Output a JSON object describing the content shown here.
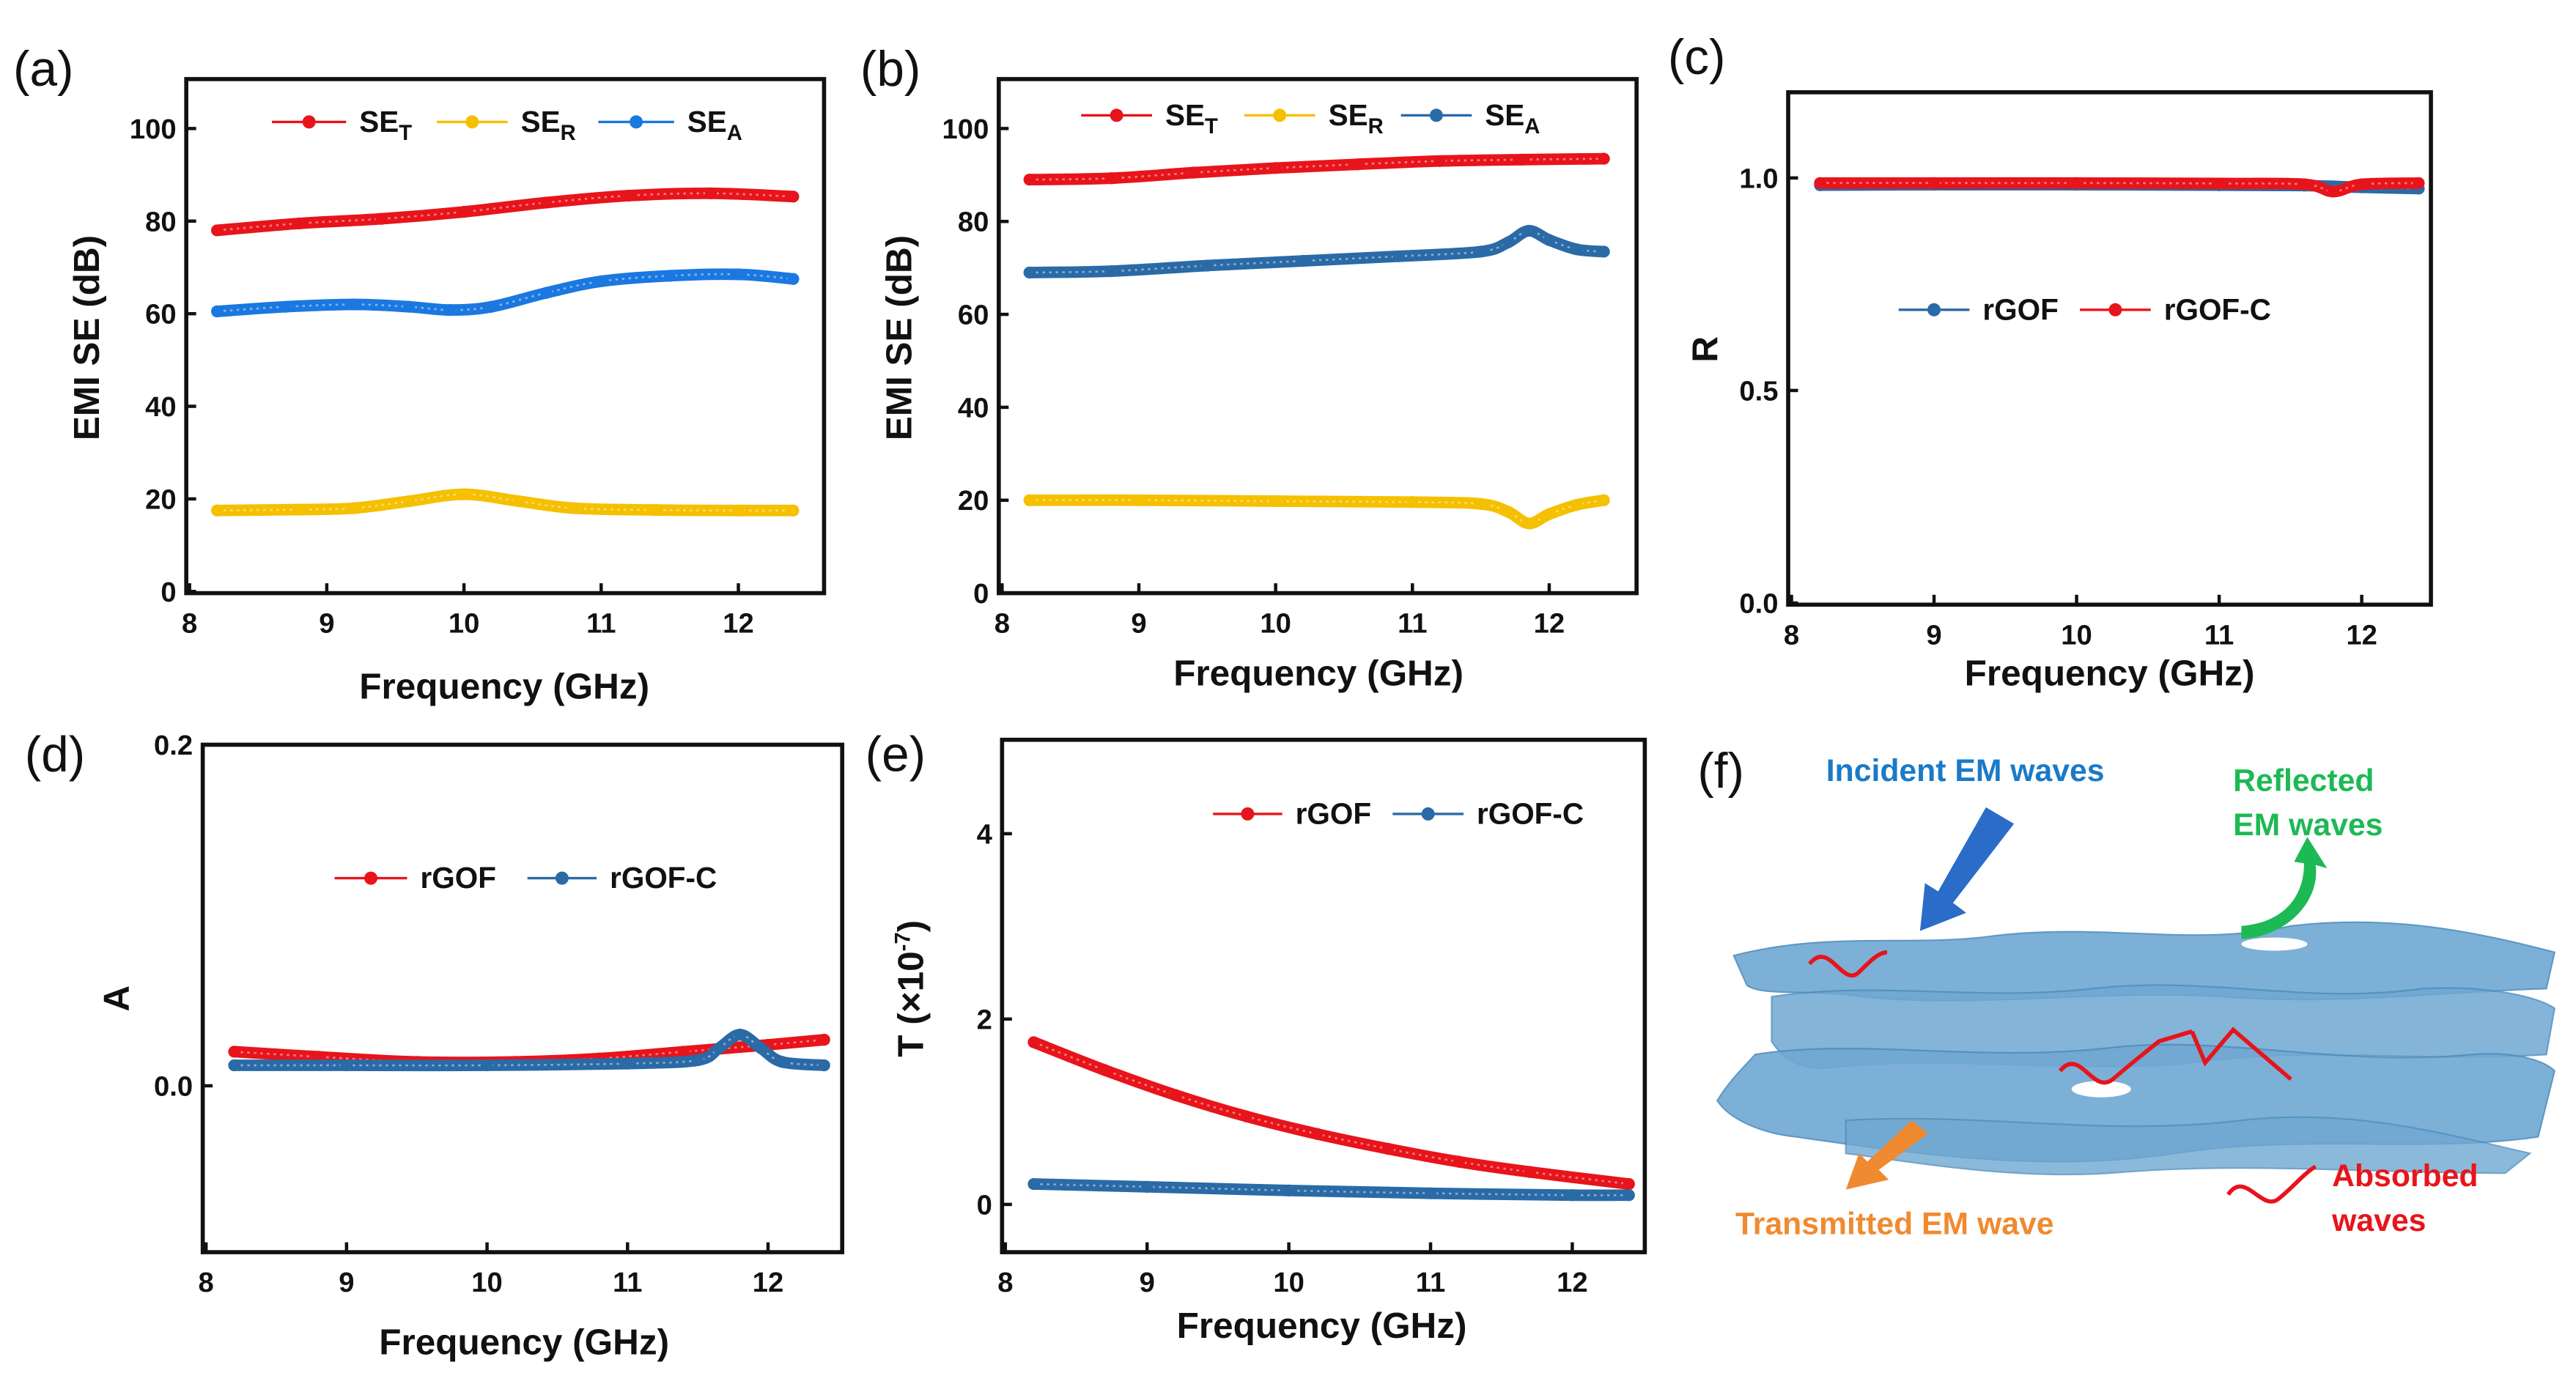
{
  "panel_labels": [
    "(a)",
    "(b)",
    "(c)",
    "(d)",
    "(e)",
    "(f)"
  ],
  "colors": {
    "red": "#e8141b",
    "yellow": "#f5c000",
    "blue_a": "#1a78e0",
    "blue": "#2a6aa6",
    "incident": "#1a7ac8",
    "reflected": "#1db954",
    "transmitted": "#f08a30",
    "absorbed": "#e8141b",
    "fiber": "#6fa8d2"
  },
  "chart_data": [
    {
      "id": "a",
      "type": "line",
      "xlabel": "Frequency (GHz)",
      "ylabel": "EMI SE (dB)",
      "xlim": [
        8,
        12.6
      ],
      "ylim": [
        0,
        110
      ],
      "xticks": [
        "8",
        "9",
        "10",
        "11",
        "12"
      ],
      "yticks": [
        "0",
        "20",
        "40",
        "60",
        "80",
        "100"
      ],
      "legend_position": "top",
      "series": [
        {
          "name": "SE",
          "sub": "T",
          "color": "#e8141b",
          "x": [
            8.2,
            8.8,
            9.4,
            10,
            10.6,
            11.2,
            11.8,
            12.4
          ],
          "y": [
            78,
            79.5,
            80.5,
            82,
            84,
            85.5,
            86,
            85.3
          ]
        },
        {
          "name": "SE",
          "sub": "R",
          "color": "#f5c000",
          "x": [
            8.2,
            8.8,
            9.2,
            9.6,
            10,
            10.4,
            10.8,
            11.4,
            12,
            12.4
          ],
          "y": [
            17.5,
            17.7,
            18,
            19.5,
            21,
            19.5,
            18,
            17.6,
            17.5,
            17.5
          ]
        },
        {
          "name": "SE",
          "sub": "A",
          "color": "#1a78e0",
          "x": [
            8.2,
            8.7,
            9.2,
            9.6,
            9.9,
            10.2,
            10.6,
            11,
            11.5,
            12,
            12.4
          ],
          "y": [
            60.5,
            61.5,
            62,
            61.5,
            60.8,
            61.5,
            64.5,
            67,
            68.2,
            68.5,
            67.5
          ]
        }
      ]
    },
    {
      "id": "b",
      "type": "line",
      "xlabel": "Frequency (GHz)",
      "ylabel": "EMI SE (dB)",
      "xlim": [
        8,
        12.6
      ],
      "ylim": [
        0,
        110
      ],
      "xticks": [
        "8",
        "9",
        "10",
        "11",
        "12"
      ],
      "yticks": [
        "0",
        "20",
        "40",
        "60",
        "80",
        "100"
      ],
      "legend_position": "top",
      "series": [
        {
          "name": "SE",
          "sub": "T",
          "color": "#e8141b",
          "x": [
            8.2,
            8.8,
            9.4,
            10,
            10.6,
            11.2,
            11.8,
            12.4
          ],
          "y": [
            89,
            89.3,
            90.5,
            91.5,
            92.3,
            93,
            93.3,
            93.5
          ]
        },
        {
          "name": "SE",
          "sub": "R",
          "color": "#f5c000",
          "x": [
            8.2,
            9,
            10,
            11,
            11.5,
            11.7,
            11.85,
            12,
            12.2,
            12.4
          ],
          "y": [
            20,
            20,
            19.8,
            19.6,
            19.2,
            17.5,
            15,
            17,
            19,
            20
          ]
        },
        {
          "name": "SE",
          "sub": "A",
          "color": "#2a6aa6",
          "x": [
            8.2,
            8.8,
            9.5,
            10.2,
            10.9,
            11.5,
            11.7,
            11.85,
            12,
            12.2,
            12.4
          ],
          "y": [
            69,
            69.3,
            70.5,
            71.5,
            72.5,
            73.5,
            75.5,
            78,
            76,
            74,
            73.5
          ]
        }
      ]
    },
    {
      "id": "c",
      "type": "line",
      "xlabel": "Frequency (GHz)",
      "ylabel": "R",
      "xlim": [
        8,
        12.6
      ],
      "ylim": [
        0,
        1.19
      ],
      "xticks": [
        "8",
        "9",
        "10",
        "11",
        "12"
      ],
      "yticks": [
        "0.0",
        "0.5",
        "1.0"
      ],
      "legend_position": "center",
      "series": [
        {
          "name": "rGOF",
          "sub": "",
          "color": "#2a6aa6",
          "x": [
            8.2,
            9,
            10,
            11,
            11.6,
            12,
            12.4
          ],
          "y": [
            0.983,
            0.984,
            0.984,
            0.983,
            0.982,
            0.978,
            0.975
          ]
        },
        {
          "name": "rGOF-C",
          "sub": "",
          "color": "#e8141b",
          "x": [
            8.2,
            9,
            10,
            11,
            11.6,
            11.8,
            12,
            12.4
          ],
          "y": [
            0.988,
            0.988,
            0.988,
            0.987,
            0.985,
            0.968,
            0.985,
            0.988
          ]
        }
      ]
    },
    {
      "id": "d",
      "type": "line",
      "xlabel": "Frequency (GHz)",
      "ylabel": "A",
      "xlim": [
        8,
        12.5
      ],
      "ylim": [
        -0.1,
        0.2
      ],
      "xticks": [
        "8",
        "9",
        "10",
        "11",
        "12"
      ],
      "yticks": [
        "0.0",
        "0.2"
      ],
      "legend_position": "center",
      "series": [
        {
          "name": "rGOF",
          "sub": "",
          "color": "#e8141b",
          "x": [
            8.2,
            8.8,
            9.5,
            10.2,
            10.8,
            11.4,
            12,
            12.4
          ],
          "y": [
            0.02,
            0.017,
            0.014,
            0.014,
            0.016,
            0.02,
            0.024,
            0.027
          ]
        },
        {
          "name": "rGOF-C",
          "sub": "",
          "color": "#2a6aa6",
          "x": [
            8.2,
            9,
            10,
            11,
            11.5,
            11.65,
            11.8,
            11.95,
            12.1,
            12.4
          ],
          "y": [
            0.012,
            0.012,
            0.012,
            0.013,
            0.015,
            0.022,
            0.03,
            0.022,
            0.014,
            0.012
          ]
        }
      ]
    },
    {
      "id": "e",
      "type": "line",
      "xlabel": "Frequency (GHz)",
      "ylabel": "T (×10",
      "ylabel_sup": "-7",
      "ylabel_end": ")",
      "xlim": [
        8,
        12.5
      ],
      "ylim": [
        -0.5,
        5
      ],
      "xticks": [
        "8",
        "9",
        "10",
        "11",
        "12"
      ],
      "yticks": [
        "0",
        "2",
        "4"
      ],
      "legend_position": "top-right",
      "series": [
        {
          "name": "rGOF",
          "sub": "",
          "color": "#e8141b",
          "x": [
            8.2,
            8.7,
            9.2,
            9.7,
            10.2,
            10.7,
            11.2,
            11.7,
            12.4
          ],
          "y": [
            1.75,
            1.45,
            1.18,
            0.95,
            0.76,
            0.6,
            0.46,
            0.35,
            0.22
          ]
        },
        {
          "name": "rGOF-C",
          "sub": "",
          "color": "#2a6aa6",
          "x": [
            8.2,
            9,
            10,
            11,
            12,
            12.4
          ],
          "y": [
            0.22,
            0.19,
            0.15,
            0.12,
            0.1,
            0.1
          ]
        }
      ]
    }
  ],
  "illustration": {
    "incident": "Incident EM waves",
    "reflected": [
      "Reflected",
      "EM waves"
    ],
    "transmitted": "Transmitted EM wave",
    "absorbed": [
      "Absorbed",
      "waves"
    ]
  }
}
